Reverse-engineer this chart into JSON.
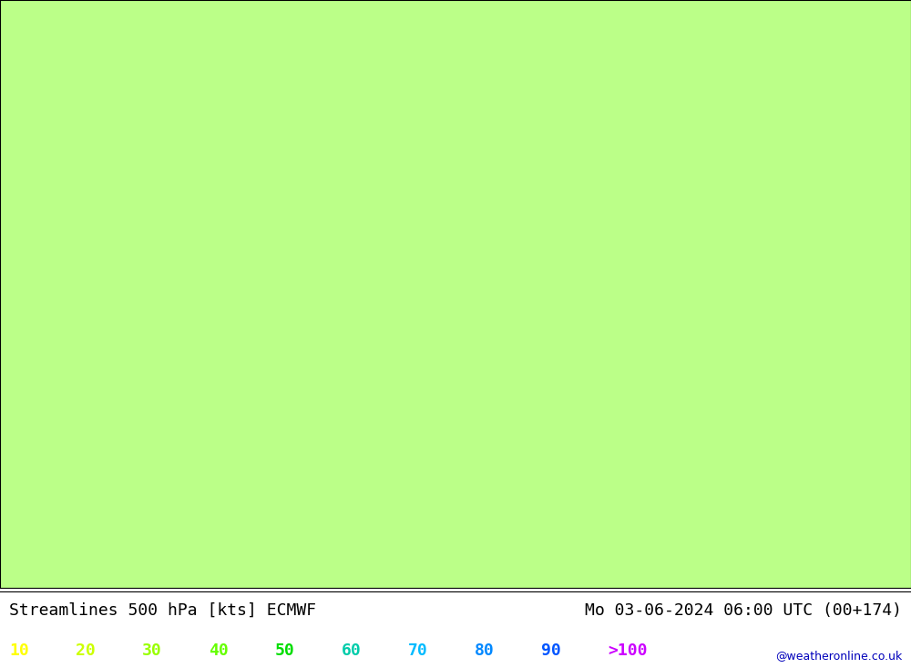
{
  "title_left": "Streamlines 500 hPa [kts] ECMWF",
  "title_right": "Mo 03-06-2024 06:00 UTC (00+174)",
  "watermark": "@weatheronline.co.uk",
  "legend_values": [
    "10",
    "20",
    "30",
    "40",
    "50",
    "60",
    "70",
    "80",
    "90",
    ">100"
  ],
  "legend_colors": [
    "#ffff00",
    "#ccff00",
    "#99ff00",
    "#66ff00",
    "#00dd00",
    "#00ccaa",
    "#00bbff",
    "#0088ff",
    "#0055ff",
    "#cc00ff"
  ],
  "background_color": "#bbff88",
  "land_color": "#c8c8c8",
  "map_line_color": "#888888",
  "title_fontsize": 13,
  "legend_fontsize": 13,
  "fig_width": 10.0,
  "fig_height": 7.33,
  "map_extent": [
    -30,
    45,
    20,
    73
  ],
  "streamline_density": 3.0,
  "streamline_linewidth": 1.0
}
